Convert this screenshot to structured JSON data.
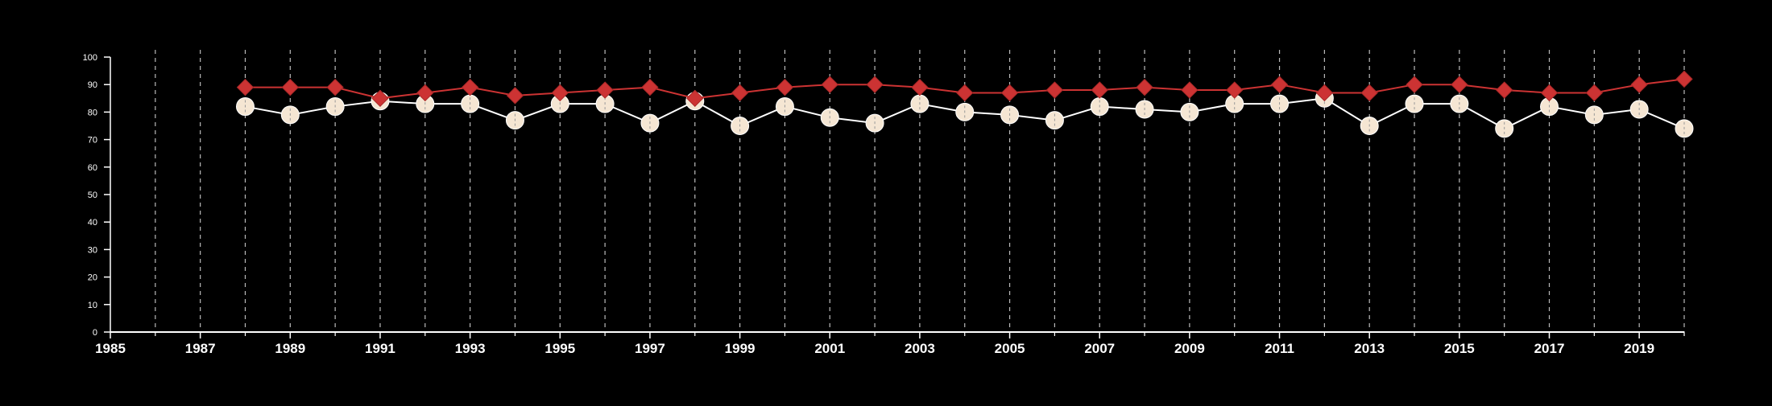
{
  "chart_data": {
    "type": "line",
    "title": "",
    "xlabel": "",
    "ylabel": "",
    "xlim": [
      1985,
      2020
    ],
    "ylim": [
      0,
      100
    ],
    "x_ticks": [
      1985,
      1987,
      1989,
      1991,
      1993,
      1995,
      1997,
      1999,
      2001,
      2003,
      2005,
      2007,
      2009,
      2011,
      2013,
      2015,
      2017,
      2019
    ],
    "y_ticks": [
      0,
      10,
      20,
      30,
      40,
      50,
      60,
      70,
      80,
      90,
      100
    ],
    "vertical_grid_years": [
      1986,
      1987,
      1988,
      1989,
      1990,
      1991,
      1992,
      1993,
      1994,
      1995,
      1996,
      1997,
      1998,
      1999,
      2000,
      2001,
      2002,
      2003,
      2004,
      2005,
      2006,
      2007,
      2008,
      2009,
      2010,
      2011,
      2012,
      2013,
      2014,
      2015,
      2016,
      2017,
      2018,
      2019,
      2020
    ],
    "grid": "vertical dashed",
    "legend": "none",
    "series": [
      {
        "marker": "diamond",
        "color": "#cc3333",
        "x": [
          1988,
          1989,
          1990,
          1991,
          1992,
          1993,
          1994,
          1995,
          1996,
          1997,
          1998,
          1999,
          2000,
          2001,
          2002,
          2003,
          2004,
          2005,
          2006,
          2007,
          2008,
          2009,
          2010,
          2011,
          2012,
          2013,
          2014,
          2015,
          2016,
          2017,
          2018,
          2019,
          2020
        ],
        "values": [
          89,
          89,
          89,
          85,
          87,
          89,
          86,
          87,
          88,
          89,
          85,
          87,
          89,
          90,
          90,
          89,
          87,
          87,
          88,
          88,
          89,
          88,
          88,
          90,
          87,
          87,
          90,
          90,
          88,
          87,
          87,
          90,
          92
        ]
      },
      {
        "marker": "circle",
        "color": "#f5e6d3",
        "x": [
          1988,
          1989,
          1990,
          1991,
          1992,
          1993,
          1994,
          1995,
          1996,
          1997,
          1998,
          1999,
          2000,
          2001,
          2002,
          2003,
          2004,
          2005,
          2006,
          2007,
          2008,
          2009,
          2010,
          2011,
          2012,
          2013,
          2014,
          2015,
          2016,
          2017,
          2018,
          2019,
          2020
        ],
        "values": [
          82,
          79,
          82,
          84,
          83,
          83,
          77,
          83,
          83,
          76,
          84,
          75,
          82,
          78,
          76,
          83,
          80,
          79,
          77,
          82,
          81,
          80,
          83,
          83,
          85,
          75,
          83,
          83,
          74,
          82,
          79,
          81,
          74
        ]
      }
    ]
  },
  "colors": {
    "background": "#000000",
    "axis": "#ffffff",
    "grid": "#bbbbbb",
    "series_1_line": "#cc3333",
    "series_2_line": "#ffffff"
  }
}
